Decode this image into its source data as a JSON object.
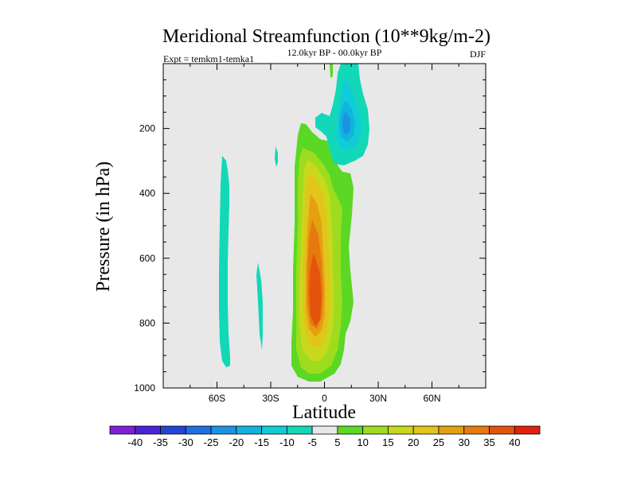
{
  "chart_data": {
    "type": "contour",
    "title": "Meridional Streamfunction (10**9kg/m-2)",
    "subtitle_left": "Expt = temkm1-temka1",
    "subtitle_center": "12.0kyr BP - 00.0kyr BP",
    "subtitle_right": "DJF",
    "xlabel": "Latitude",
    "ylabel": "Pressure (in hPa)",
    "xlim": [
      -90,
      90
    ],
    "ylim": [
      1000,
      0
    ],
    "x_ticks": [
      {
        "value": -60,
        "label": "60S"
      },
      {
        "value": -30,
        "label": "30S"
      },
      {
        "value": 0,
        "label": "0"
      },
      {
        "value": 30,
        "label": "30N"
      },
      {
        "value": 60,
        "label": "60N"
      }
    ],
    "y_ticks": [
      {
        "value": 200,
        "label": "200"
      },
      {
        "value": 400,
        "label": "400"
      },
      {
        "value": 600,
        "label": "600"
      },
      {
        "value": 800,
        "label": "800"
      },
      {
        "value": 1000,
        "label": "1000"
      }
    ],
    "background_color": "#e8e8e8",
    "contour_levels": [
      -40,
      -35,
      -30,
      -25,
      -20,
      -15,
      -10,
      -5,
      5,
      10,
      15,
      20,
      25,
      30,
      35,
      40
    ],
    "colorbar": {
      "labels": [
        "-40",
        "-35",
        "-30",
        "-25",
        "-20",
        "-15",
        "-10",
        "-5",
        "5",
        "10",
        "15",
        "20",
        "25",
        "30",
        "35",
        "40"
      ],
      "colors": [
        "#7f1fd8",
        "#4b22d6",
        "#2345d6",
        "#1f6fe0",
        "#1b93e0",
        "#12b3dc",
        "#10ccd8",
        "#12d8b8",
        "#e8e8e8",
        "#5ad824",
        "#9ddc1e",
        "#c8d81c",
        "#e2c41a",
        "#e5a012",
        "#e57a10",
        "#e4540e",
        "#e0220c"
      ]
    },
    "regions": [
      {
        "name": "ne-upper-neg",
        "lat_range": [
          -8,
          30
        ],
        "p_range": [
          0,
          310
        ],
        "min": -15
      },
      {
        "name": "sh-midlat-neg-a",
        "lat_range": [
          -64,
          -57
        ],
        "p_range": [
          285,
          915
        ],
        "min": -5
      },
      {
        "name": "sh-midlat-neg-b",
        "lat_range": [
          -37,
          -34
        ],
        "p_range": [
          610,
          860
        ],
        "min": -5
      },
      {
        "name": "tropical-pos",
        "lat_range": [
          -18,
          18
        ],
        "p_range": [
          185,
          990
        ],
        "max": 35
      }
    ]
  }
}
